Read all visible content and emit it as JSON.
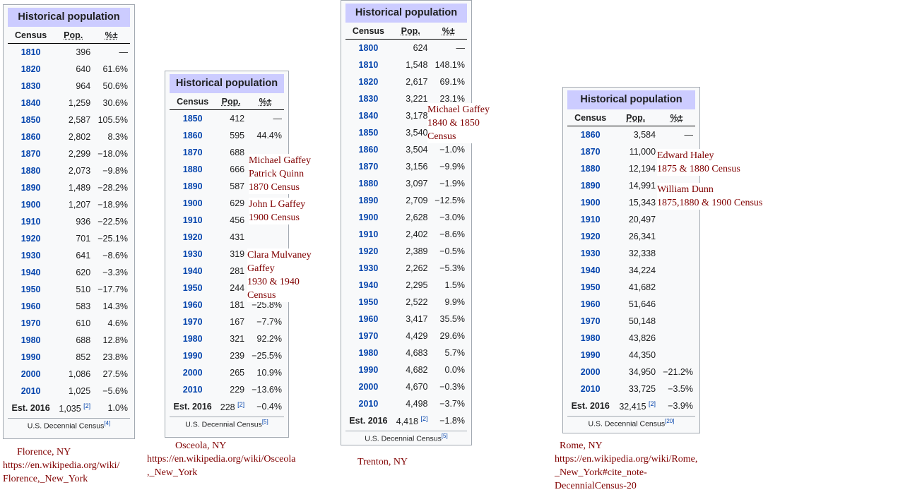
{
  "tables": [
    {
      "id": "florence",
      "title": "Historical population",
      "headers": {
        "census": "Census",
        "pop": "Pop.",
        "pct": "%±"
      },
      "rows": [
        {
          "year": "1810",
          "pop": "396",
          "pct": "—"
        },
        {
          "year": "1820",
          "pop": "640",
          "pct": "61.6%"
        },
        {
          "year": "1830",
          "pop": "964",
          "pct": "50.6%"
        },
        {
          "year": "1840",
          "pop": "1,259",
          "pct": "30.6%"
        },
        {
          "year": "1850",
          "pop": "2,587",
          "pct": "105.5%"
        },
        {
          "year": "1860",
          "pop": "2,802",
          "pct": "8.3%"
        },
        {
          "year": "1870",
          "pop": "2,299",
          "pct": "−18.0%"
        },
        {
          "year": "1880",
          "pop": "2,073",
          "pct": "−9.8%"
        },
        {
          "year": "1890",
          "pop": "1,489",
          "pct": "−28.2%"
        },
        {
          "year": "1900",
          "pop": "1,207",
          "pct": "−18.9%"
        },
        {
          "year": "1910",
          "pop": "936",
          "pct": "−22.5%"
        },
        {
          "year": "1920",
          "pop": "701",
          "pct": "−25.1%"
        },
        {
          "year": "1930",
          "pop": "641",
          "pct": "−8.6%"
        },
        {
          "year": "1940",
          "pop": "620",
          "pct": "−3.3%"
        },
        {
          "year": "1950",
          "pop": "510",
          "pct": "−17.7%"
        },
        {
          "year": "1960",
          "pop": "583",
          "pct": "14.3%"
        },
        {
          "year": "1970",
          "pop": "610",
          "pct": "4.6%"
        },
        {
          "year": "1980",
          "pop": "688",
          "pct": "12.8%"
        },
        {
          "year": "1990",
          "pop": "852",
          "pct": "23.8%"
        },
        {
          "year": "2000",
          "pop": "1,086",
          "pct": "27.5%"
        },
        {
          "year": "2010",
          "pop": "1,025",
          "pct": "−5.6%"
        }
      ],
      "estimate": {
        "label": "Est. 2016",
        "pop": "1,035",
        "ref": "[2]",
        "pct": "1.0%"
      },
      "source": {
        "text": "U.S. Decennial Census",
        "ref": "[4]"
      }
    },
    {
      "id": "osceola",
      "title": "Historical population",
      "headers": {
        "census": "Census",
        "pop": "Pop.",
        "pct": "%±"
      },
      "rows": [
        {
          "year": "1850",
          "pop": "412",
          "pct": "—"
        },
        {
          "year": "1860",
          "pop": "595",
          "pct": "44.4%"
        },
        {
          "year": "1870",
          "pop": "688",
          "pct": ""
        },
        {
          "year": "1880",
          "pop": "666",
          "pct": ""
        },
        {
          "year": "1890",
          "pop": "587",
          "pct": ""
        },
        {
          "year": "1900",
          "pop": "629",
          "pct": ""
        },
        {
          "year": "1910",
          "pop": "456",
          "pct": ""
        },
        {
          "year": "1920",
          "pop": "431",
          "pct": ""
        },
        {
          "year": "1930",
          "pop": "319",
          "pct": ""
        },
        {
          "year": "1940",
          "pop": "281",
          "pct": ""
        },
        {
          "year": "1950",
          "pop": "244",
          "pct": ""
        },
        {
          "year": "1960",
          "pop": "181",
          "pct": "−25.8%"
        },
        {
          "year": "1970",
          "pop": "167",
          "pct": "−7.7%"
        },
        {
          "year": "1980",
          "pop": "321",
          "pct": "92.2%"
        },
        {
          "year": "1990",
          "pop": "239",
          "pct": "−25.5%"
        },
        {
          "year": "2000",
          "pop": "265",
          "pct": "10.9%"
        },
        {
          "year": "2010",
          "pop": "229",
          "pct": "−13.6%"
        }
      ],
      "estimate": {
        "label": "Est. 2016",
        "pop": "228",
        "ref": "[2]",
        "pct": "−0.4%"
      },
      "source": {
        "text": "U.S. Decennial Census",
        "ref": "[5]"
      }
    },
    {
      "id": "trenton",
      "title": "Historical population",
      "headers": {
        "census": "Census",
        "pop": "Pop.",
        "pct": "%±"
      },
      "rows": [
        {
          "year": "1800",
          "pop": "624",
          "pct": "—"
        },
        {
          "year": "1810",
          "pop": "1,548",
          "pct": "148.1%"
        },
        {
          "year": "1820",
          "pop": "2,617",
          "pct": "69.1%"
        },
        {
          "year": "1830",
          "pop": "3,221",
          "pct": "23.1%"
        },
        {
          "year": "1840",
          "pop": "3,178",
          "pct": ""
        },
        {
          "year": "1850",
          "pop": "3,540",
          "pct": ""
        },
        {
          "year": "1860",
          "pop": "3,504",
          "pct": "−1.0%"
        },
        {
          "year": "1870",
          "pop": "3,156",
          "pct": "−9.9%"
        },
        {
          "year": "1880",
          "pop": "3,097",
          "pct": "−1.9%"
        },
        {
          "year": "1890",
          "pop": "2,709",
          "pct": "−12.5%"
        },
        {
          "year": "1900",
          "pop": "2,628",
          "pct": "−3.0%"
        },
        {
          "year": "1910",
          "pop": "2,402",
          "pct": "−8.6%"
        },
        {
          "year": "1920",
          "pop": "2,389",
          "pct": "−0.5%"
        },
        {
          "year": "1930",
          "pop": "2,262",
          "pct": "−5.3%"
        },
        {
          "year": "1940",
          "pop": "2,295",
          "pct": "1.5%"
        },
        {
          "year": "1950",
          "pop": "2,522",
          "pct": "9.9%"
        },
        {
          "year": "1960",
          "pop": "3,417",
          "pct": "35.5%"
        },
        {
          "year": "1970",
          "pop": "4,429",
          "pct": "29.6%"
        },
        {
          "year": "1980",
          "pop": "4,683",
          "pct": "5.7%"
        },
        {
          "year": "1990",
          "pop": "4,682",
          "pct": "0.0%"
        },
        {
          "year": "2000",
          "pop": "4,670",
          "pct": "−0.3%"
        },
        {
          "year": "2010",
          "pop": "4,498",
          "pct": "−3.7%"
        }
      ],
      "estimate": {
        "label": "Est. 2016",
        "pop": "4,418",
        "ref": "[2]",
        "pct": "−1.8%"
      },
      "source": {
        "text": "U.S. Decennial Census",
        "ref": "[5]"
      }
    },
    {
      "id": "rome",
      "title": "Historical population",
      "headers": {
        "census": "Census",
        "pop": "Pop.",
        "pct": "%±"
      },
      "rows": [
        {
          "year": "1860",
          "pop": "3,584",
          "pct": "—"
        },
        {
          "year": "1870",
          "pop": "11,000",
          "pct": ""
        },
        {
          "year": "1880",
          "pop": "12,194",
          "pct": ""
        },
        {
          "year": "1890",
          "pop": "14,991",
          "pct": ""
        },
        {
          "year": "1900",
          "pop": "15,343",
          "pct": ""
        },
        {
          "year": "1910",
          "pop": "20,497",
          "pct": ""
        },
        {
          "year": "1920",
          "pop": "26,341",
          "pct": ""
        },
        {
          "year": "1930",
          "pop": "32,338",
          "pct": ""
        },
        {
          "year": "1940",
          "pop": "34,224",
          "pct": ""
        },
        {
          "year": "1950",
          "pop": "41,682",
          "pct": ""
        },
        {
          "year": "1960",
          "pop": "51,646",
          "pct": ""
        },
        {
          "year": "1970",
          "pop": "50,148",
          "pct": ""
        },
        {
          "year": "1980",
          "pop": "43,826",
          "pct": ""
        },
        {
          "year": "1990",
          "pop": "44,350",
          "pct": ""
        },
        {
          "year": "2000",
          "pop": "34,950",
          "pct": "−21.2%"
        },
        {
          "year": "2010",
          "pop": "33,725",
          "pct": "−3.5%"
        }
      ],
      "estimate": {
        "label": "Est. 2016",
        "pop": "32,415",
        "ref": "[2]",
        "pct": "−3.9%"
      },
      "source": {
        "text": "U.S. Decennial Census",
        "ref": "[20]"
      }
    }
  ],
  "notes": {
    "osceola_1870": [
      "Michael Gaffey",
      "Patrick Quinn",
      "1870 Census"
    ],
    "osceola_1900": [
      "John L Gaffey",
      "1900 Census"
    ],
    "osceola_1930": [
      "Clara Mulvaney",
      "Gaffey",
      "1930 & 1940",
      "Census"
    ],
    "trenton_1840": [
      "Michael Gaffey",
      "1840 & 1850",
      "Census"
    ],
    "rome_haley": [
      "Edward Haley",
      "1875 & 1880 Census"
    ],
    "rome_dunn": [
      "William Dunn",
      "1875,1880 & 1900 Census"
    ]
  },
  "captions": {
    "florence": [
      "Florence, NY",
      "https://en.wikipedia.org/wiki/",
      "Florence,_New_York"
    ],
    "osceola": [
      "Osceola, NY",
      "https://en.wikipedia.org/wiki/Osceola",
      ",_New_York"
    ],
    "trenton": [
      "Trenton, NY"
    ],
    "rome": [
      "Rome, NY",
      "https://en.wikipedia.org/wiki/Rome,",
      "_New_York#cite_note-",
      "DecennialCensus-20"
    ]
  },
  "colors": {
    "title_bg": "#ccccff",
    "link_blue": "#0645ad",
    "note_red": "#800000",
    "box_bg": "#f8f9fa",
    "box_border": "#a2a9b1"
  }
}
